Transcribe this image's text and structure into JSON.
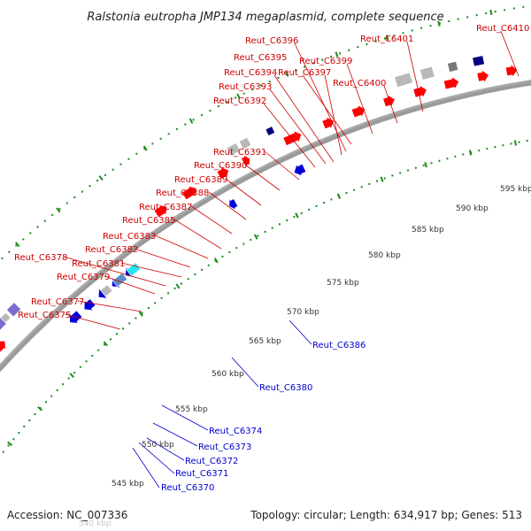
{
  "title": "Ralstonia eutropha JMP134 megaplasmid, complete sequence",
  "footer": {
    "accession": "Accession: NC_007336",
    "summary": "Topology: circular; Length: 634,917 bp; Genes: 513"
  },
  "ticks": [
    "545 kbp",
    "550 kbp",
    "555 kbp",
    "560 kbp",
    "565 kbp",
    "570 kbp",
    "575 kbp",
    "580 kbp",
    "585 kbp",
    "590 kbp",
    "595 kbp"
  ],
  "faded_tick": "540 kbp",
  "labels_forward": [
    "Reut_C6375",
    "Reut_C6377",
    "Reut_C6379",
    "Reut_C6378",
    "Reut_C6381",
    "Reut_C6382",
    "Reut_C6383",
    "Reut_C6385",
    "Reut_C6387",
    "Reut_C6388",
    "Reut_C6389",
    "Reut_C6390",
    "Reut_C6391",
    "Reut_C6392",
    "Reut_C6393",
    "Reut_C6394",
    "Reut_C6395",
    "Reut_C6396",
    "Reut_C6397",
    "Reut_C6399",
    "Reut_C6400",
    "Reut_C6401",
    "Reut_C6410"
  ],
  "labels_reverse": [
    "Reut_C6370",
    "Reut_C6371",
    "Reut_C6372",
    "Reut_C6373",
    "Reut_C6374",
    "Reut_C6380",
    "Reut_C6386"
  ],
  "colors": {
    "forward_cds": "#ff0000",
    "reverse_cds": "#0000dd",
    "forward_label": "#cc0000",
    "reverse_label": "#0000cc",
    "backbone": "#9a9a9a",
    "dots": "#1a8a1a",
    "cyan_feature": "#22e6f0",
    "purple_feature": "#7a6fd0",
    "gray_feature": "#b8b8b8",
    "navy_feature": "#000080",
    "steelblue_feature": "#5a8cc8",
    "olive_feature": "#6a9a2a"
  }
}
